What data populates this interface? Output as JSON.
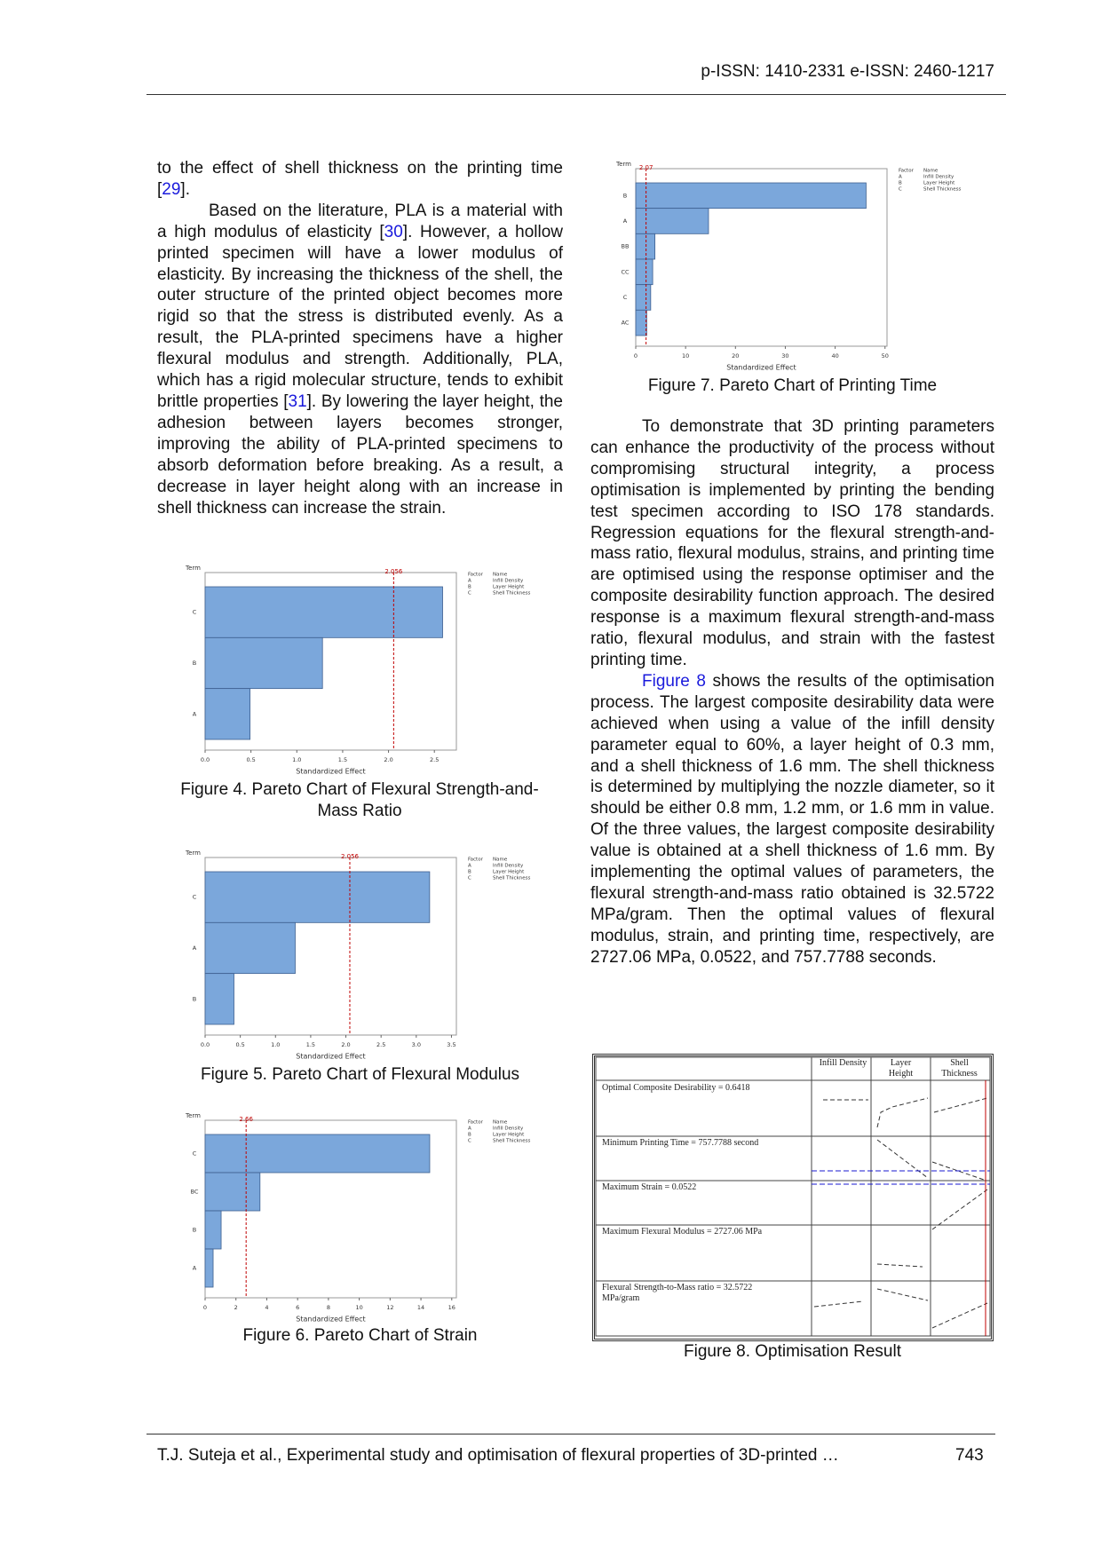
{
  "header": {
    "issn": "p-ISSN: 1410-2331  e-ISSN: 2460-1217"
  },
  "left_column": {
    "paragraphs": [
      [
        "to the effect of shell thickness on the printing time [",
        "29",
        "]."
      ],
      [
        "Based on the literature, PLA is a material with a high modulus of elasticity [",
        "30",
        "]. However, a hollow printed specimen will have a lower modulus of elasticity. By increasing the thickness of the shell, the outer structure of the printed object becomes more rigid so that the stress is distributed evenly. As a result, the PLA-printed specimens have a higher flexural modulus and strength. Additionally, PLA, which has a rigid molecular structure, tends to exhibit brittle properties [",
        "31",
        "]. By lowering the layer height, the adhesion between layers becomes stronger, improving the ability of PLA-printed specimens to absorb deformation before breaking. As a result, a decrease in layer height along with an increase in shell thickness can increase the strain."
      ]
    ]
  },
  "right_column": {
    "paragraphs": [
      [
        "To demonstrate that 3D printing parameters can enhance the productivity of the process without compromising structural integrity, a process optimisation is implemented by printing the bending test specimen according to ISO 178 standards. Regression equations for the flexural strength-and-mass ratio, flexural modulus, strains, and printing time are optimised using the response optimiser and the composite desirability function approach. The desired response is a maximum flexural strength-and-mass ratio, flexural modulus, and strain with the fastest printing time."
      ],
      [
        "Figure 8",
        " shows the results of the optimisation process. The largest composite desirability data were achieved when using a value of the infill density parameter equal to 60%, a layer height of 0.3 mm, and a shell thickness of 1.6 mm. The shell thickness is determined by multiplying the nozzle diameter, so it should be either 0.8 mm, 1.2 mm, or 1.6 mm in value. Of the three values, the largest composite desirability value is obtained at a shell thickness of 1.6 mm. By implementing the optimal values of parameters, the flexural strength-and-mass ratio obtained is 32.5722 MPa/gram. Then the optimal values of flexural modulus, strain, and printing time, respectively, are 2727.06 MPa, 0.0522, and 757.7788 seconds."
      ]
    ]
  },
  "chart_data": [
    {
      "type": "bar",
      "orientation": "horizontal",
      "title": "Figure 4. Pareto Chart of Flexural Strength-and-Mass Ratio",
      "y_label": "Term",
      "x_label": "Standardized Effect",
      "categories": [
        "C",
        "B",
        "A"
      ],
      "values": [
        2.59,
        1.28,
        0.49
      ],
      "color": "#7ba7db",
      "xlim": [
        0,
        2.74
      ],
      "xticks": [
        {
          "value": 0,
          "label": "0.0"
        },
        {
          "value": 0.5,
          "label": "0.5"
        },
        {
          "value": 1,
          "label": "1.0"
        },
        {
          "value": 1.5,
          "label": "1.5"
        },
        {
          "value": 2,
          "label": "2.0"
        },
        {
          "value": 2.5,
          "label": "2.5"
        }
      ],
      "reference_line": {
        "value": 2.056,
        "color": "#c00000"
      },
      "legend": {
        "header": [
          "Factor",
          "Name"
        ],
        "rows": [
          [
            "A",
            "Infill Density"
          ],
          [
            "B",
            "Layer Height"
          ],
          [
            "C",
            "Shell Thickness"
          ]
        ]
      }
    },
    {
      "type": "bar",
      "orientation": "horizontal",
      "title": "Figure 5. Pareto Chart of Flexural Modulus",
      "y_label": "Term",
      "x_label": "Standardized Effect",
      "categories": [
        "C",
        "A",
        "B"
      ],
      "values": [
        3.19,
        1.28,
        0.41
      ],
      "color": "#7ba7db",
      "xlim": [
        0,
        3.57
      ],
      "xticks": [
        {
          "value": 0,
          "label": "0.0"
        },
        {
          "value": 0.5,
          "label": "0.5"
        },
        {
          "value": 1,
          "label": "1.0"
        },
        {
          "value": 1.5,
          "label": "1.5"
        },
        {
          "value": 2,
          "label": "2.0"
        },
        {
          "value": 2.5,
          "label": "2.5"
        },
        {
          "value": 3,
          "label": "3.0"
        },
        {
          "value": 3.5,
          "label": "3.5"
        }
      ],
      "reference_line": {
        "value": 2.056,
        "color": "#c00000"
      },
      "legend": {
        "header": [
          "Factor",
          "Name"
        ],
        "rows": [
          [
            "A",
            "Infill Density"
          ],
          [
            "B",
            "Layer Height"
          ],
          [
            "C",
            "Shell Thickness"
          ]
        ]
      }
    },
    {
      "type": "bar",
      "orientation": "horizontal",
      "title": "Figure 6. Pareto Chart of Strain",
      "y_label": "Term",
      "x_label": "Standardized Effect",
      "categories": [
        "C",
        "BC",
        "B",
        "A"
      ],
      "values": [
        14.57,
        3.56,
        1.04,
        0.52
      ],
      "color": "#7ba7db",
      "xlim": [
        0,
        16.3
      ],
      "xticks": [
        0,
        2,
        4,
        6,
        8,
        10,
        12,
        14,
        16
      ],
      "reference_line": {
        "value": 2.66,
        "color": "#c00000"
      },
      "legend": {
        "header": [
          "Factor",
          "Name"
        ],
        "rows": [
          [
            "A",
            "Infill Density"
          ],
          [
            "B",
            "Layer Height"
          ],
          [
            "C",
            "Shell Thickness"
          ]
        ]
      }
    },
    {
      "type": "bar",
      "orientation": "horizontal",
      "title": "Figure 7. Pareto Chart of Printing Time",
      "y_label": "Term",
      "x_label": "Standardized Effect",
      "categories": [
        "B",
        "A",
        "BB",
        "CC",
        "C",
        "AC"
      ],
      "values": [
        46.2,
        14.6,
        3.85,
        3.4,
        3.0,
        2.2
      ],
      "color": "#7ba7db",
      "xlim": [
        0,
        50.4
      ],
      "xticks": [
        0,
        10,
        20,
        30,
        40,
        50
      ],
      "reference_line": {
        "value": 2.07,
        "color": "#c00000"
      },
      "legend": {
        "header": [
          "Factor",
          "Name"
        ],
        "rows": [
          [
            "A",
            "Infill Density"
          ],
          [
            "B",
            "Layer Height"
          ],
          [
            "C",
            "Shell Thickness"
          ]
        ]
      }
    }
  ],
  "optimisation_table": {
    "columns": [
      "Infill Density",
      "Layer Height",
      "Shell Thickness"
    ],
    "rows": [
      "Optimal Composite Desirability = 0.6418",
      "Minimum Printing Time = 757.7788 second",
      "Maximum Strain = 0.0522",
      "Maximum Flexural Modulus = 2727.06 MPa",
      "Flexural Strength-to-Mass ratio = 32.5722 MPa/gram"
    ],
    "caption": "Figure 8. Optimisation Result"
  },
  "footer": {
    "citation": "T.J. Suteja et al., Experimental study and optimisation of flexural properties of 3D-printed …",
    "page": "743"
  }
}
